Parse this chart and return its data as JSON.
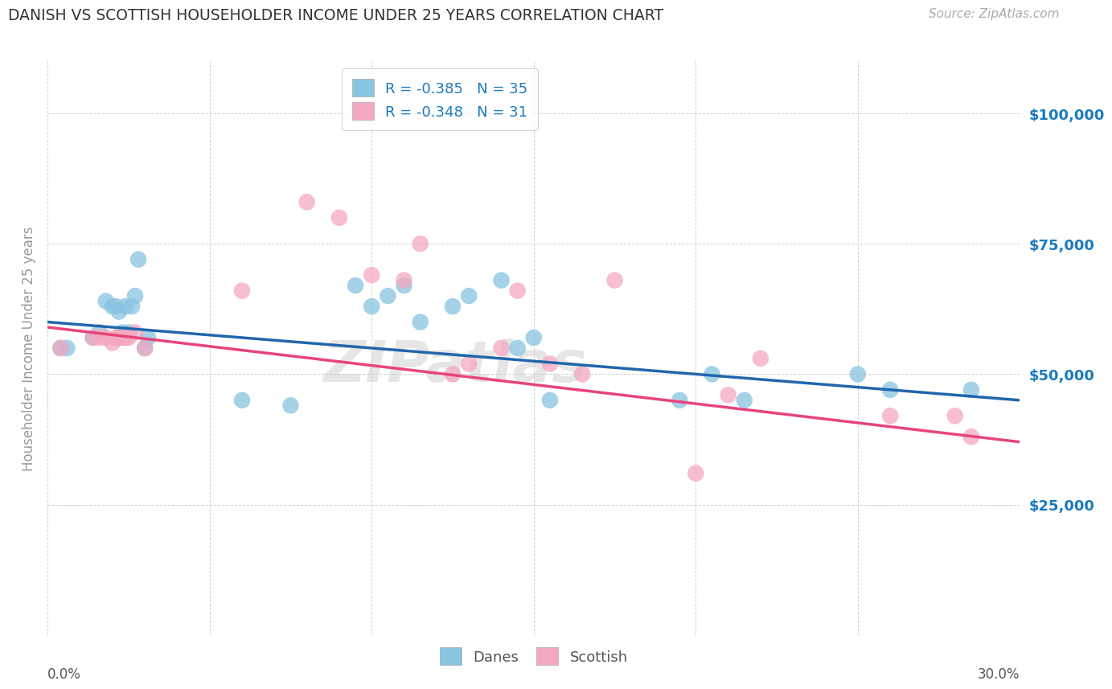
{
  "title": "DANISH VS SCOTTISH HOUSEHOLDER INCOME UNDER 25 YEARS CORRELATION CHART",
  "source": "Source: ZipAtlas.com",
  "ylabel": "Householder Income Under 25 years",
  "xlim": [
    0.0,
    0.3
  ],
  "ylim": [
    0,
    110000
  ],
  "yticks": [
    25000,
    50000,
    75000,
    100000
  ],
  "ytick_labels": [
    "$25,000",
    "$50,000",
    "$75,000",
    "$100,000"
  ],
  "xticks": [
    0.0,
    0.05,
    0.1,
    0.15,
    0.2,
    0.25,
    0.3
  ],
  "danes_color": "#89c4e1",
  "scottish_color": "#f4a8bf",
  "danes_line_color": "#2166ac",
  "scottish_line_color": "#e8447a",
  "danes_R": "-0.385",
  "danes_N": "35",
  "scottish_R": "-0.348",
  "scottish_N": "31",
  "background_color": "#ffffff",
  "grid_color": "#cccccc",
  "title_color": "#333333",
  "label_color": "#1a7abf",
  "danes_x": [
    0.004,
    0.006,
    0.014,
    0.016,
    0.018,
    0.02,
    0.021,
    0.022,
    0.023,
    0.024,
    0.025,
    0.026,
    0.027,
    0.028,
    0.03,
    0.031,
    0.06,
    0.075,
    0.095,
    0.1,
    0.105,
    0.11,
    0.115,
    0.125,
    0.13,
    0.14,
    0.145,
    0.15,
    0.155,
    0.195,
    0.205,
    0.215,
    0.25,
    0.26,
    0.285
  ],
  "danes_y": [
    55000,
    55000,
    57000,
    58000,
    64000,
    63000,
    63000,
    62000,
    58000,
    63000,
    58000,
    63000,
    65000,
    72000,
    55000,
    57000,
    45000,
    44000,
    67000,
    63000,
    65000,
    67000,
    60000,
    63000,
    65000,
    68000,
    55000,
    57000,
    45000,
    45000,
    50000,
    45000,
    50000,
    47000,
    47000
  ],
  "scottish_x": [
    0.004,
    0.014,
    0.016,
    0.018,
    0.02,
    0.021,
    0.022,
    0.023,
    0.024,
    0.025,
    0.027,
    0.03,
    0.06,
    0.08,
    0.09,
    0.1,
    0.11,
    0.115,
    0.125,
    0.13,
    0.14,
    0.145,
    0.155,
    0.165,
    0.175,
    0.2,
    0.21,
    0.22,
    0.26,
    0.28,
    0.285
  ],
  "scottish_y": [
    55000,
    57000,
    57000,
    57000,
    56000,
    57000,
    57000,
    57000,
    57000,
    57000,
    58000,
    55000,
    66000,
    83000,
    80000,
    69000,
    68000,
    75000,
    50000,
    52000,
    55000,
    66000,
    52000,
    50000,
    68000,
    31000,
    46000,
    53000,
    42000,
    42000,
    38000
  ],
  "watermark": "ZIPatlas",
  "danes_line_x": [
    0.0,
    0.3
  ],
  "danes_line_y": [
    60000,
    45000
  ],
  "scottish_line_x": [
    0.0,
    0.3
  ],
  "scottish_line_y": [
    59000,
    37000
  ]
}
